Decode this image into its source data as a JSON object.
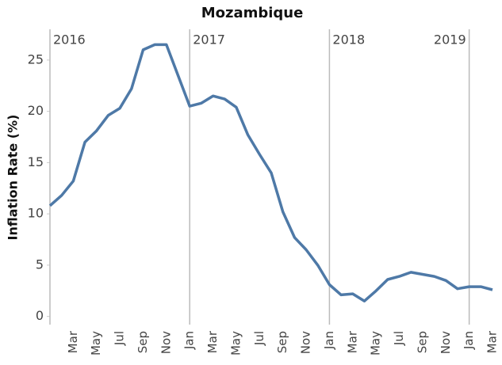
{
  "chart_data": {
    "type": "line",
    "title": "Mozambique",
    "y_label": "Inflation Rate (%)",
    "categories": [
      null,
      null,
      "Mar",
      null,
      "May",
      null,
      "Jul",
      null,
      "Sep",
      null,
      "Nov",
      null,
      "Jan",
      null,
      "Mar",
      null,
      "May",
      null,
      "Jul",
      null,
      "Sep",
      null,
      "Nov",
      null,
      "Jan",
      null,
      "Mar",
      null,
      "May",
      null,
      "Jul",
      null,
      "Sep",
      null,
      "Nov",
      null,
      "Jan",
      null,
      "Mar"
    ],
    "values": [
      10.8,
      11.8,
      13.2,
      17.0,
      18.1,
      19.6,
      20.3,
      22.2,
      26.0,
      26.5,
      26.5,
      23.5,
      20.5,
      20.8,
      21.5,
      21.2,
      20.4,
      17.7,
      15.8,
      14.0,
      10.2,
      7.7,
      6.5,
      5.0,
      3.1,
      2.1,
      2.2,
      1.5,
      2.5,
      3.6,
      3.9,
      4.3,
      4.1,
      3.9,
      3.5,
      2.7,
      2.9,
      2.9,
      2.6
    ],
    "color": "#4e79a7",
    "years": [
      "2016",
      "2017",
      "2018",
      "2019"
    ],
    "ylim": [
      -0.8,
      28
    ],
    "yticks": [
      0,
      5,
      10,
      15,
      20,
      25
    ]
  }
}
